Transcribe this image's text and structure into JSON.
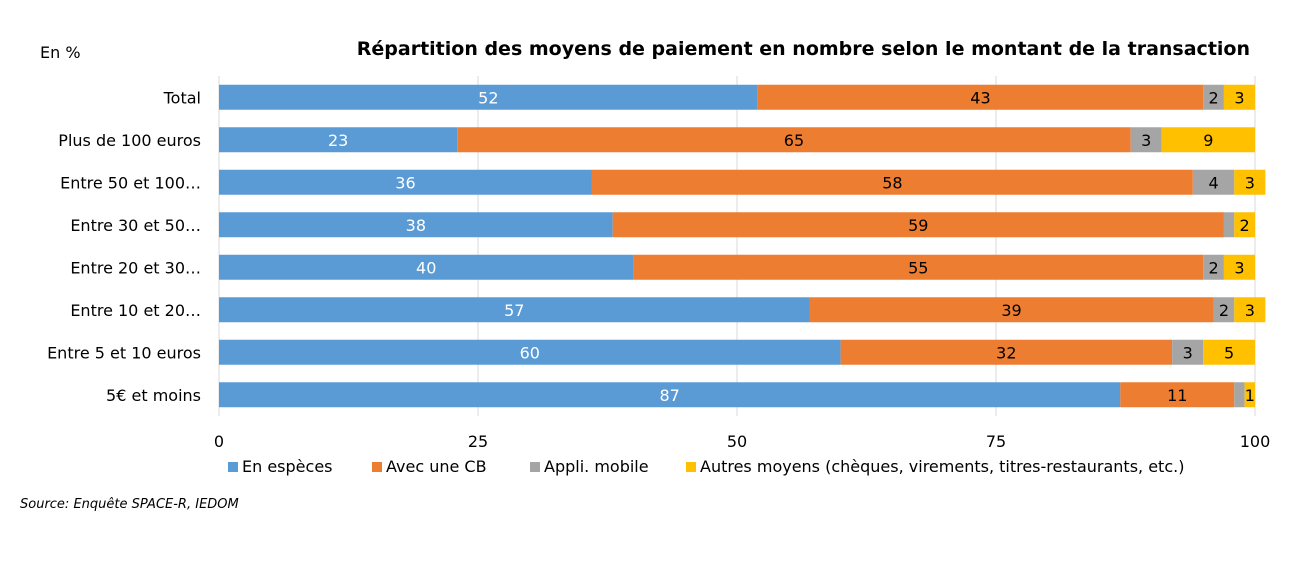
{
  "chart_data": {
    "type": "bar",
    "orientation": "horizontal",
    "stacked": true,
    "title": "Répartition des moyens de paiement en nombre selon le montant de la transaction",
    "unit_label": "En %",
    "source": "Source: Enquête SPACE-R, IEDOM",
    "categories": [
      "Total",
      "Plus de 100 euros",
      "Entre 50 et 100…",
      "Entre 30 et 50…",
      "Entre 20 et 30…",
      "Entre 10 et 20…",
      "Entre 5 et 10 euros",
      "5€ et moins"
    ],
    "series": [
      {
        "name": "En espèces",
        "color": "#5b9bd5",
        "label_color": "#ffffff",
        "values": [
          52,
          23,
          36,
          38,
          40,
          57,
          60,
          87
        ]
      },
      {
        "name": "Avec une CB",
        "color": "#ed7d31",
        "label_color": "#000000",
        "values": [
          43,
          65,
          58,
          59,
          55,
          39,
          32,
          11
        ]
      },
      {
        "name": "Appli. mobile",
        "color": "#a5a5a5",
        "label_color": "#000000",
        "values": [
          2,
          3,
          4,
          1,
          2,
          2,
          3,
          1
        ]
      },
      {
        "name": "Autres moyens (chèques, virements, titres-restaurants, etc.)",
        "color": "#ffc000",
        "label_color": "#000000",
        "values": [
          3,
          9,
          3,
          2,
          3,
          3,
          5,
          1
        ]
      }
    ],
    "data_labels": [
      [
        "52",
        "23",
        "36",
        "38",
        "40",
        "57",
        "60",
        "87"
      ],
      [
        "43",
        "65",
        "58",
        "59",
        "55",
        "39",
        "32",
        "11"
      ],
      [
        "2",
        "3",
        "4",
        "",
        "2",
        "2",
        "3",
        ""
      ],
      [
        "3",
        "9",
        "3",
        "2",
        "3",
        "3",
        "5",
        "1"
      ]
    ],
    "xlim": [
      0,
      100
    ],
    "xticks": [
      0,
      25,
      50,
      75,
      100
    ],
    "grid": true,
    "legend_position": "bottom"
  }
}
